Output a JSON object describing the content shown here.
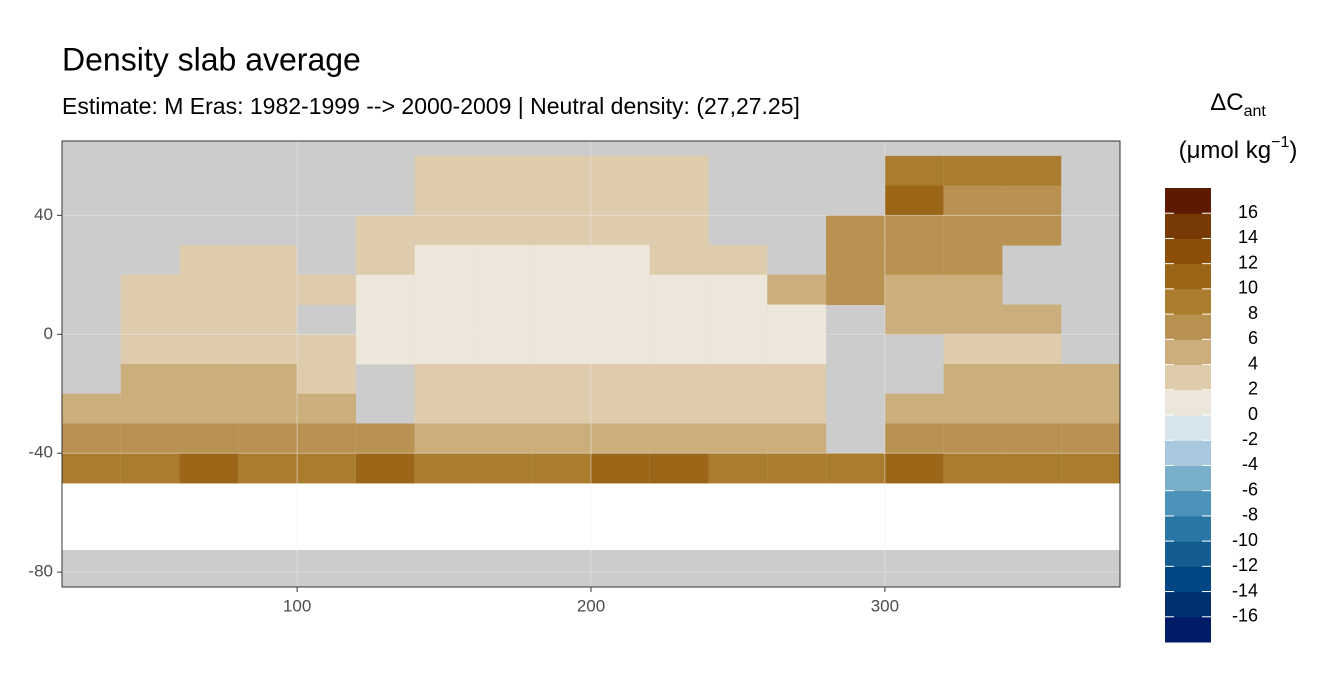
{
  "chart_data": {
    "type": "heatmap",
    "title": "Density slab average",
    "subtitle": "Estimate: M Eras: 1982-1999 --> 2000-2009 | Neutral density: (27,27.25]",
    "legend_title": {
      "main": "ΔC",
      "sub": "ant",
      "unit": "(μmol kg",
      "sup": "−1",
      "close": ")"
    },
    "xlim": [
      20,
      380
    ],
    "ylim": [
      -85,
      65
    ],
    "xticks": [
      100,
      200,
      300
    ],
    "yticks": [
      -80,
      -40,
      0,
      40
    ],
    "grid": true,
    "x": [
      30,
      50,
      70,
      90,
      110,
      130,
      150,
      170,
      190,
      210,
      230,
      250,
      270,
      290,
      310,
      330,
      350,
      370
    ],
    "y": [
      55,
      45,
      35,
      25,
      15,
      5,
      -5,
      -15,
      -25,
      -35,
      -45
    ],
    "values": [
      [
        null,
        null,
        null,
        null,
        null,
        null,
        2,
        3,
        2,
        2,
        2,
        null,
        null,
        null,
        9,
        9,
        8,
        null
      ],
      [
        null,
        null,
        null,
        null,
        null,
        null,
        3,
        3,
        2,
        2,
        2,
        null,
        null,
        null,
        10,
        7,
        7,
        null
      ],
      [
        null,
        null,
        null,
        null,
        null,
        2,
        3,
        2,
        2,
        2,
        2,
        null,
        null,
        7,
        7,
        7,
        7,
        null
      ],
      [
        null,
        null,
        3,
        3,
        null,
        2,
        1,
        1,
        1,
        1,
        2,
        2,
        null,
        6,
        6,
        6,
        null,
        null
      ],
      [
        null,
        3,
        3,
        3,
        2,
        1,
        1,
        1,
        1,
        1,
        1,
        1,
        5,
        6,
        5,
        5,
        null,
        null
      ],
      [
        null,
        3,
        3,
        3,
        null,
        1,
        1,
        1,
        1,
        1,
        1,
        1,
        1,
        null,
        4,
        4,
        4,
        null
      ],
      [
        null,
        3,
        3,
        3,
        2,
        1,
        1,
        1,
        1,
        1,
        1,
        1,
        1,
        null,
        null,
        3,
        3,
        null
      ],
      [
        null,
        4,
        4,
        4,
        3,
        null,
        2,
        2,
        2,
        2,
        2,
        2,
        2,
        null,
        null,
        4,
        4,
        4
      ],
      [
        5,
        5,
        5,
        5,
        5,
        null,
        3,
        3,
        3,
        3,
        3,
        3,
        3,
        null,
        5,
        5,
        5,
        5
      ],
      [
        7,
        7,
        7,
        7,
        6,
        6,
        5,
        5,
        4,
        5,
        5,
        5,
        5,
        null,
        7,
        7,
        7,
        7
      ],
      [
        9,
        9,
        10,
        9,
        9,
        10,
        9,
        8,
        9,
        10,
        10,
        9,
        9,
        9,
        10,
        9,
        9,
        9
      ]
    ],
    "legend_lim": [
      -18,
      18
    ],
    "legend_ticks": [
      -16,
      -14,
      -12,
      -10,
      -8,
      -6,
      -4,
      -2,
      0,
      2,
      4,
      6,
      8,
      10,
      12,
      14,
      16
    ],
    "legend_colors": [
      "#001c66",
      "#00306f",
      "#004683",
      "#135c90",
      "#2a77a6",
      "#4a92b8",
      "#7aafcc",
      "#a8c9dd",
      "#d7e6ec",
      "#ede6da",
      "#dfccac",
      "#cbae7b",
      "#b99251",
      "#aa7d2e",
      "#9c6618",
      "#8c4f0a",
      "#773a04",
      "#5e1a00"
    ],
    "land_color": "#cccccc"
  }
}
